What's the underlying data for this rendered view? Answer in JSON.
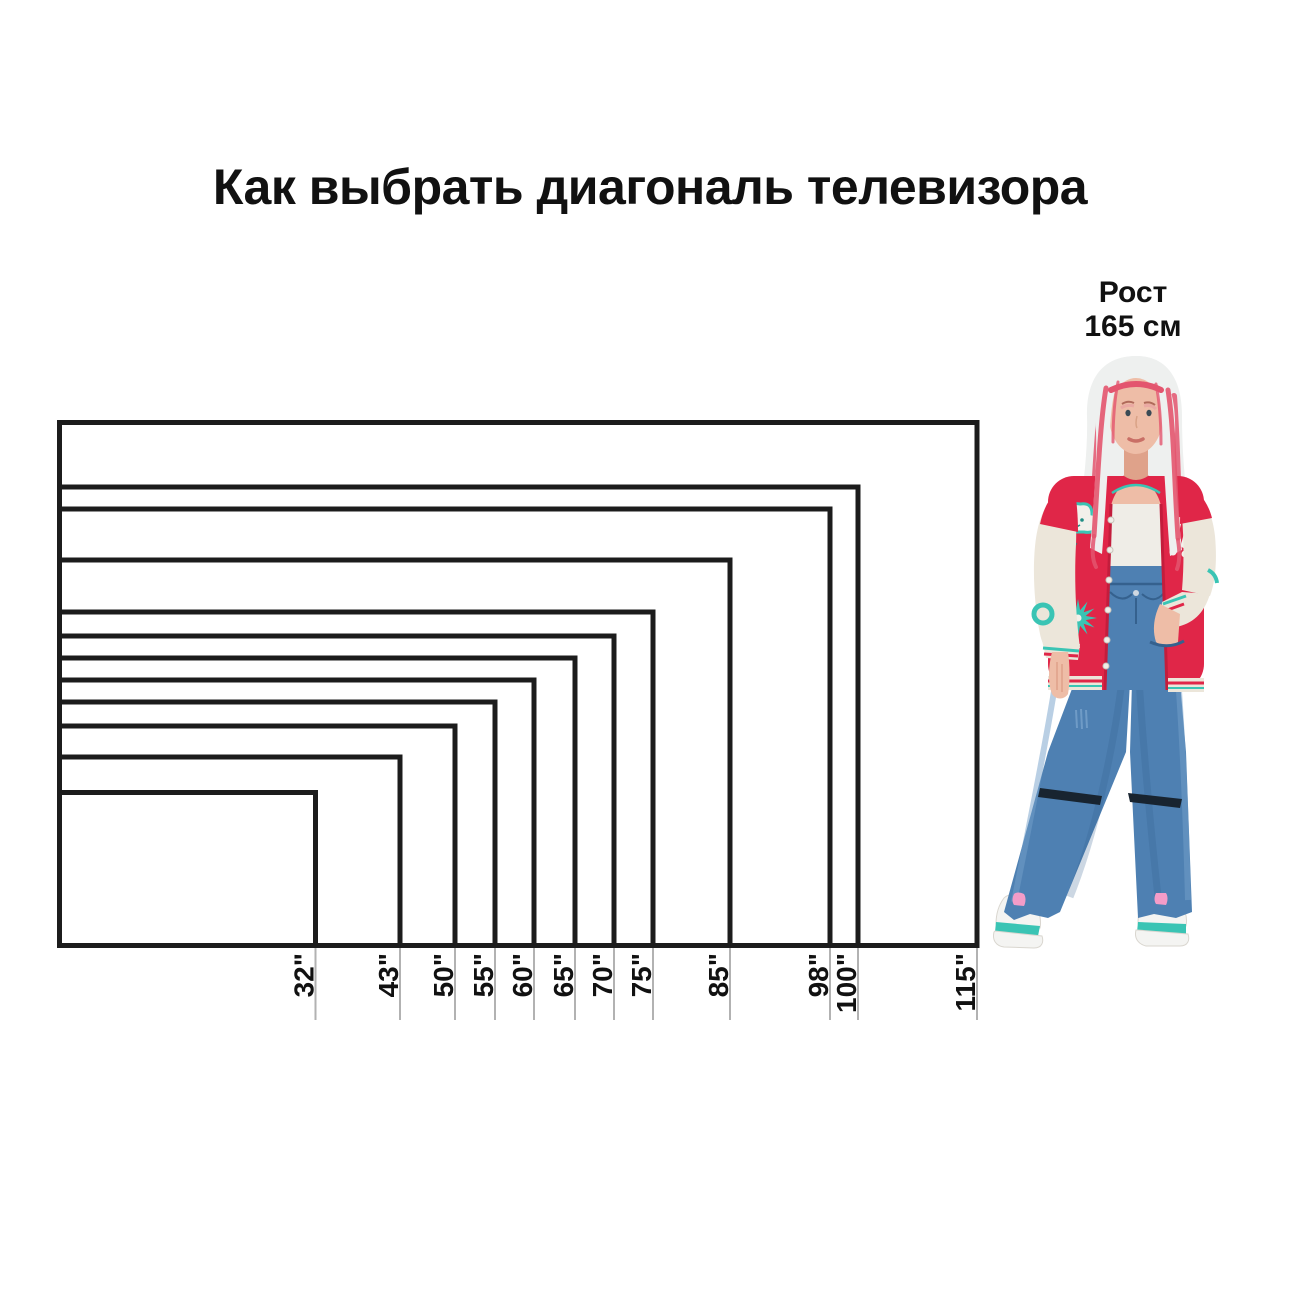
{
  "title": "Как выбрать диагональ телевизора",
  "height_label": {
    "line1": "Рост",
    "line2": "165 см"
  },
  "chart_data": {
    "type": "nested-rectangles",
    "title": "Как выбрать диагональ телевизора",
    "unit": "inches",
    "aspect_ratio": "16:9",
    "diagonals_in": [
      32,
      43,
      50,
      55,
      60,
      65,
      70,
      75,
      85,
      98,
      100,
      115
    ],
    "labels": [
      "32\"",
      "43\"",
      "50\"",
      "55\"",
      "60\"",
      "65\"",
      "70\"",
      "75\"",
      "85\"",
      "98\"",
      "100\"",
      "115\""
    ],
    "reference_person": {
      "label": "Рост 165 см",
      "height_cm": 165
    },
    "layout_hint": "rectangles nested, shared bottom-left corner; gray tick below bottom edge at each rectangle's right edge; labels rotated 90deg reading bottom-to-top"
  },
  "colors": {
    "outline": "#1c1c1c",
    "text": "#111111",
    "tick": "#b2b2b2",
    "jacket-red": "#e02648",
    "jacket-red-dark": "#c31d3c",
    "sleeve-ivory": "#ece6da",
    "teal": "#3ac4b4",
    "teal-dark": "#1f8d84",
    "tank-white": "#efede7",
    "denim": "#4e80b2",
    "denim-dark": "#35618e",
    "denim-light": "#739fc9",
    "hair-white": "#eef0ef",
    "hair-pink": "#e3556e",
    "skin": "#eebda7",
    "skin-shadow": "#dfa28a",
    "shoe-white": "#f4f4f2",
    "shoe-pink": "#f49cc8",
    "slit-dark": "#182430"
  }
}
